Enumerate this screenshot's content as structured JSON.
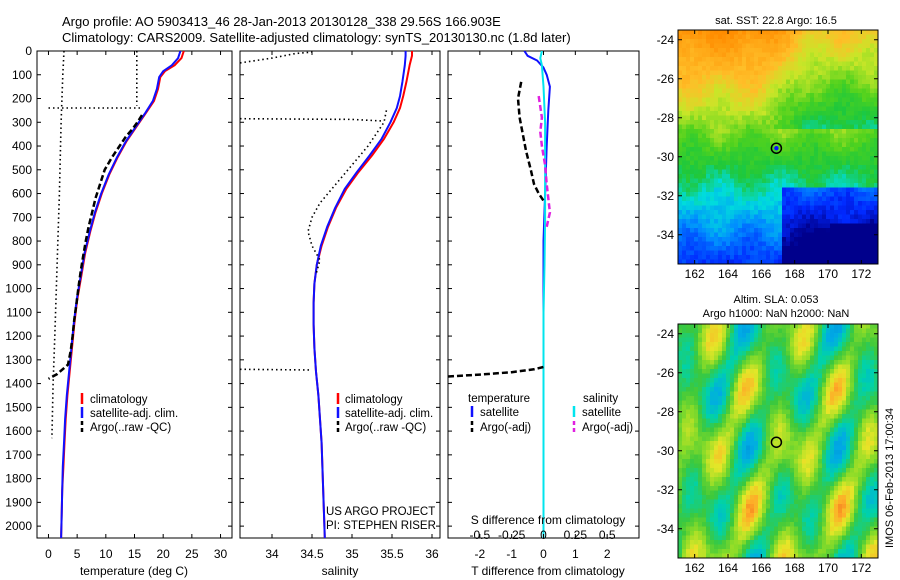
{
  "figure": {
    "title_line1": "Argo profile: AO 5903413_46 28-Jan-2013 20130128_338 29.56S 166.903E",
    "title_line2": "Climatology: CARS2009. Satellite-adjusted climatology: synTS_20130130.nc (1.8d later)",
    "watermark": "IMOS 06-Feb-2013 17:00:34",
    "project_line1": "US ARGO PROJECT",
    "project_line2": "PI: STEPHEN RISER"
  },
  "colors": {
    "climatology": "#ff0000",
    "satellite_adj": "#1010ff",
    "argo": "#000000",
    "satellite_sal": "#00e5ee",
    "argo_sal": "#e020e0"
  },
  "legend_profiles": {
    "climatology": "climatology",
    "satellite": "satellite-adj. clim.",
    "argo": "Argo(..raw -QC)"
  },
  "legend_diff": {
    "temperature": "temperature",
    "salinity": "salinity",
    "t_satellite": "satellite",
    "t_argo": "Argo(-adj)",
    "s_satellite": "satellite",
    "s_argo": "Argo(-adj)"
  },
  "maps": {
    "sst_title": "sat. SST: 22.8  Argo: 16.5",
    "sla_title_line1": "Altim. SLA: 0.053",
    "sla_title_line2": "Argo h1000: NaN h2000: NaN",
    "icon": "ocean-map-heatmap-icon"
  },
  "chart_data": [
    {
      "type": "line",
      "id": "temperature",
      "xlabel": "temperature (deg C)",
      "ylim": [
        2050,
        0
      ],
      "xlim": [
        -2,
        32
      ],
      "xticks": [
        0,
        5,
        10,
        15,
        20,
        25,
        30
      ],
      "yticks": [
        0,
        100,
        200,
        300,
        400,
        500,
        600,
        700,
        800,
        900,
        1000,
        1100,
        1200,
        1300,
        1400,
        1500,
        1600,
        1700,
        1800,
        1900,
        2000
      ],
      "series": [
        {
          "key": "climatology",
          "style": "solid",
          "points": [
            [
              23.6,
              0
            ],
            [
              23.2,
              30
            ],
            [
              22.0,
              60
            ],
            [
              20.3,
              85
            ],
            [
              19.5,
              110
            ],
            [
              19.1,
              160
            ],
            [
              18.4,
              210
            ],
            [
              17.0,
              260
            ],
            [
              15.3,
              320
            ],
            [
              13.6,
              380
            ],
            [
              12.0,
              450
            ],
            [
              10.6,
              520
            ],
            [
              9.3,
              600
            ],
            [
              8.2,
              680
            ],
            [
              7.3,
              760
            ],
            [
              6.4,
              850
            ],
            [
              5.7,
              950
            ],
            [
              5.0,
              1050
            ],
            [
              4.5,
              1150
            ],
            [
              4.1,
              1250
            ],
            [
              3.7,
              1350
            ],
            [
              3.3,
              1450
            ],
            [
              3.0,
              1550
            ],
            [
              2.8,
              1650
            ],
            [
              2.6,
              1750
            ],
            [
              2.4,
              1850
            ],
            [
              2.3,
              1950
            ],
            [
              2.2,
              2050
            ]
          ]
        },
        {
          "key": "satellite_adj",
          "style": "solid",
          "points": [
            [
              23.0,
              0
            ],
            [
              22.6,
              30
            ],
            [
              21.5,
              60
            ],
            [
              20.0,
              85
            ],
            [
              19.3,
              110
            ],
            [
              18.9,
              160
            ],
            [
              18.2,
              210
            ],
            [
              16.9,
              260
            ],
            [
              15.2,
              320
            ],
            [
              13.5,
              380
            ],
            [
              11.9,
              450
            ],
            [
              10.5,
              520
            ],
            [
              9.2,
              600
            ],
            [
              8.1,
              680
            ],
            [
              7.2,
              760
            ],
            [
              6.3,
              850
            ],
            [
              5.6,
              950
            ],
            [
              4.9,
              1050
            ],
            [
              4.4,
              1150
            ],
            [
              4.0,
              1250
            ],
            [
              3.6,
              1350
            ],
            [
              3.2,
              1450
            ],
            [
              2.9,
              1550
            ],
            [
              2.7,
              1650
            ],
            [
              2.5,
              1750
            ],
            [
              2.4,
              1850
            ],
            [
              2.3,
              1950
            ],
            [
              2.2,
              2050
            ]
          ]
        },
        {
          "key": "argo",
          "style": "dashed",
          "points": [
            [
              16.3,
              270
            ],
            [
              15.5,
              300
            ],
            [
              14.6,
              330
            ],
            [
              13.5,
              360
            ],
            [
              12.4,
              400
            ],
            [
              11.0,
              450
            ],
            [
              9.8,
              500
            ],
            [
              9.0,
              560
            ],
            [
              8.2,
              620
            ],
            [
              7.6,
              680
            ],
            [
              7.0,
              740
            ],
            [
              6.5,
              800
            ],
            [
              6.0,
              870
            ],
            [
              5.6,
              930
            ],
            [
              5.2,
              1000
            ],
            [
              4.9,
              1060
            ],
            [
              4.5,
              1130
            ],
            [
              4.2,
              1200
            ],
            [
              3.9,
              1260
            ],
            [
              3.4,
              1320
            ],
            [
              1.5,
              1360
            ],
            [
              0.0,
              1380
            ]
          ]
        },
        {
          "key": "argo",
          "style": "dotted",
          "points": [
            [
              2.7,
              0
            ],
            [
              2.5,
              100
            ],
            [
              2.2,
              300
            ],
            [
              1.9,
              600
            ],
            [
              1.5,
              900
            ],
            [
              1.1,
              1200
            ],
            [
              0.8,
              1400
            ],
            [
              0.6,
              1630
            ]
          ]
        },
        {
          "key": "argo",
          "style": "dotted",
          "points": [
            [
              15.4,
              0
            ],
            [
              15.4,
              230
            ]
          ]
        },
        {
          "key": "argo",
          "style": "dotted",
          "points": [
            [
              0.0,
              240
            ],
            [
              16.2,
              240
            ]
          ]
        }
      ]
    },
    {
      "type": "line",
      "id": "salinity",
      "xlabel": "salinity",
      "ylim": [
        2050,
        0
      ],
      "xlim": [
        33.6,
        36.1
      ],
      "xticks": [
        34,
        34.5,
        35,
        35.5,
        36
      ],
      "series": [
        {
          "key": "climatology",
          "style": "solid",
          "points": [
            [
              35.75,
              0
            ],
            [
              35.75,
              20
            ],
            [
              35.72,
              60
            ],
            [
              35.68,
              130
            ],
            [
              35.64,
              190
            ],
            [
              35.6,
              240
            ],
            [
              35.52,
              300
            ],
            [
              35.4,
              370
            ],
            [
              35.25,
              440
            ],
            [
              35.08,
              510
            ],
            [
              34.93,
              580
            ],
            [
              34.8,
              660
            ],
            [
              34.7,
              740
            ],
            [
              34.62,
              820
            ],
            [
              34.56,
              900
            ],
            [
              34.53,
              980
            ],
            [
              34.52,
              1060
            ],
            [
              34.52,
              1150
            ],
            [
              34.53,
              1250
            ],
            [
              34.55,
              1350
            ],
            [
              34.58,
              1450
            ],
            [
              34.6,
              1550
            ],
            [
              34.62,
              1650
            ],
            [
              34.63,
              1750
            ],
            [
              34.64,
              1850
            ],
            [
              34.65,
              1950
            ],
            [
              34.66,
              2050
            ]
          ]
        },
        {
          "key": "satellite_adj",
          "style": "solid",
          "points": [
            [
              35.67,
              0
            ],
            [
              35.67,
              20
            ],
            [
              35.66,
              60
            ],
            [
              35.63,
              130
            ],
            [
              35.6,
              190
            ],
            [
              35.56,
              240
            ],
            [
              35.48,
              300
            ],
            [
              35.37,
              370
            ],
            [
              35.22,
              440
            ],
            [
              35.06,
              510
            ],
            [
              34.91,
              580
            ],
            [
              34.79,
              660
            ],
            [
              34.69,
              740
            ],
            [
              34.61,
              820
            ],
            [
              34.56,
              900
            ],
            [
              34.53,
              980
            ],
            [
              34.52,
              1060
            ],
            [
              34.52,
              1150
            ],
            [
              34.53,
              1250
            ],
            [
              34.55,
              1350
            ],
            [
              34.58,
              1450
            ],
            [
              34.6,
              1550
            ],
            [
              34.62,
              1650
            ],
            [
              34.63,
              1750
            ],
            [
              34.64,
              1850
            ],
            [
              34.65,
              1950
            ],
            [
              34.66,
              2050
            ]
          ]
        },
        {
          "key": "argo",
          "style": "dotted",
          "points": [
            [
              33.6,
              50
            ],
            [
              34.0,
              30
            ],
            [
              34.3,
              10
            ],
            [
              34.5,
              5
            ]
          ]
        },
        {
          "key": "argo",
          "style": "dotted",
          "points": [
            [
              33.6,
              285
            ],
            [
              35.0,
              288
            ],
            [
              35.4,
              295
            ]
          ]
        },
        {
          "key": "argo",
          "style": "dotted",
          "points": [
            [
              35.43,
              250
            ],
            [
              35.4,
              300
            ],
            [
              35.2,
              400
            ],
            [
              35.0,
              480
            ],
            [
              34.8,
              560
            ],
            [
              34.6,
              640
            ],
            [
              34.5,
              700
            ],
            [
              34.45,
              760
            ],
            [
              34.5,
              820
            ],
            [
              34.6,
              880
            ],
            [
              34.55,
              940
            ]
          ]
        },
        {
          "key": "argo",
          "style": "dotted",
          "points": [
            [
              33.6,
              1340
            ],
            [
              34.5,
              1343
            ]
          ]
        }
      ]
    },
    {
      "type": "line",
      "id": "difference",
      "xlabel": "T difference from climatology",
      "xlabel2": "S difference from climatology",
      "ylim": [
        2050,
        0
      ],
      "xlim": [
        -3,
        3
      ],
      "xticks": [
        -2,
        -1,
        0,
        1,
        2
      ],
      "xticks2": [
        -0.5,
        -0.25,
        0,
        0.25,
        0.5
      ],
      "series": [
        {
          "key": "satellite_adj",
          "style": "solid",
          "points": [
            [
              -0.6,
              0
            ],
            [
              -0.5,
              20
            ],
            [
              -0.2,
              40
            ],
            [
              0.0,
              70
            ],
            [
              0.1,
              100
            ],
            [
              0.2,
              150
            ],
            [
              0.15,
              250
            ],
            [
              0.1,
              400
            ],
            [
              0.05,
              600
            ],
            [
              0.0,
              800
            ],
            [
              0.0,
              1000
            ],
            [
              0.0,
              1200
            ],
            [
              0.0,
              1400
            ],
            [
              0.0,
              1600
            ],
            [
              0.0,
              1800
            ],
            [
              0.0,
              2000
            ]
          ]
        },
        {
          "key": "satellite_sal",
          "style": "solid",
          "points": [
            [
              -0.05,
              0
            ],
            [
              -0.1,
              30
            ],
            [
              -0.05,
              60
            ],
            [
              0.0,
              150
            ],
            [
              0.05,
              300
            ],
            [
              0.05,
              500
            ],
            [
              0.05,
              700
            ],
            [
              0.03,
              900
            ],
            [
              0.0,
              1100
            ],
            [
              0.0,
              1300
            ],
            [
              0.0,
              1500
            ],
            [
              0.0,
              1700
            ],
            [
              0.0,
              1900
            ],
            [
              0.0,
              2050
            ]
          ]
        },
        {
          "key": "argo",
          "style": "dashed",
          "points": [
            [
              -0.7,
              130
            ],
            [
              -0.8,
              200
            ],
            [
              -0.75,
              280
            ],
            [
              -0.65,
              350
            ],
            [
              -0.55,
              420
            ],
            [
              -0.4,
              500
            ],
            [
              -0.3,
              560
            ],
            [
              -0.15,
              600
            ],
            [
              0.0,
              630
            ]
          ]
        },
        {
          "key": "argo",
          "style": "dashed",
          "points": [
            [
              -3.0,
              1370
            ],
            [
              -2.0,
              1362
            ],
            [
              -1.0,
              1352
            ],
            [
              -0.3,
              1340
            ],
            [
              0.0,
              1330
            ]
          ]
        },
        {
          "key": "argo_sal",
          "style": "dashed",
          "points": [
            [
              -0.15,
              190
            ],
            [
              -0.05,
              280
            ],
            [
              -0.1,
              340
            ],
            [
              -0.05,
              400
            ],
            [
              0.05,
              480
            ],
            [
              0.1,
              560
            ],
            [
              0.15,
              620
            ],
            [
              0.2,
              680
            ],
            [
              0.1,
              740
            ]
          ]
        }
      ]
    },
    {
      "type": "heatmap",
      "id": "sst_map",
      "xlim": [
        161,
        173
      ],
      "ylim": [
        -35.5,
        -23.5
      ],
      "xticks": [
        162,
        164,
        166,
        168,
        170,
        172
      ],
      "yticks": [
        -24,
        -26,
        -28,
        -30,
        -32,
        -34
      ],
      "argo_position": [
        166.903,
        -29.56
      ]
    },
    {
      "type": "heatmap",
      "id": "sla_map",
      "xlim": [
        161,
        173
      ],
      "ylim": [
        -35.5,
        -23.5
      ],
      "xticks": [
        162,
        164,
        166,
        168,
        170,
        172
      ],
      "yticks": [
        -24,
        -26,
        -28,
        -30,
        -32,
        -34
      ],
      "argo_position": [
        166.903,
        -29.56
      ]
    }
  ]
}
